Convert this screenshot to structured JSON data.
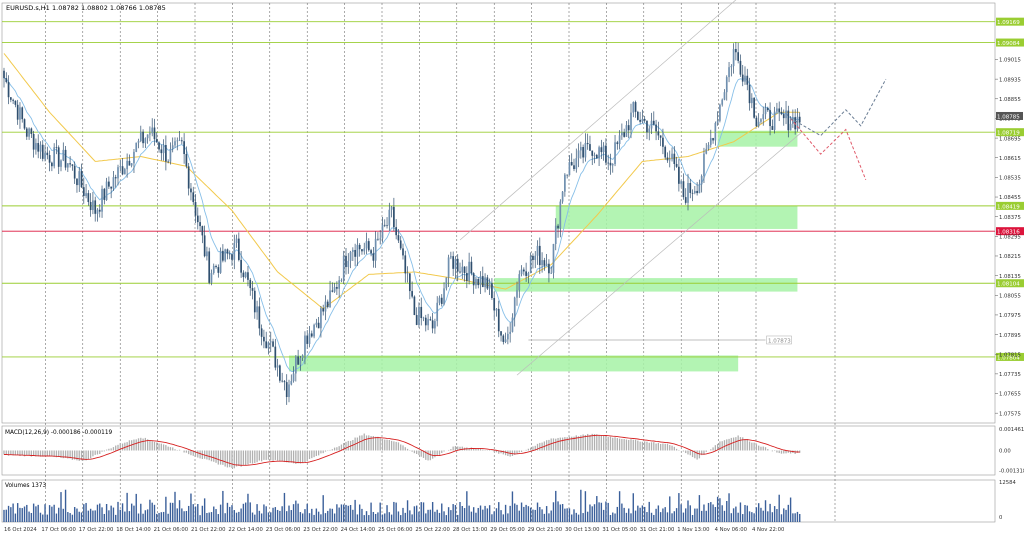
{
  "header": {
    "symbol_label": "EURUSD.s,H1",
    "ohlc": "1.08782 1.08802 1.08766 1.08785"
  },
  "chart_data": {
    "type": "candlestick",
    "symbol": "EURUSD.s",
    "timeframe": "H1",
    "ylim": [
      1.07535,
      1.09245
    ],
    "price_ticks": [
      "1.09015",
      "1.08935",
      "1.08855",
      "1.08775",
      "1.08695",
      "1.08615",
      "1.08535",
      "1.08455",
      "1.08375",
      "1.08295",
      "1.08215",
      "1.08135",
      "1.08055",
      "1.07975",
      "1.07895",
      "1.07815",
      "1.07735",
      "1.07655",
      "1.07575"
    ],
    "x_labels": [
      "16 Oct 2024",
      "17 Oct 06:00",
      "17 Oct 22:00",
      "18 Oct 14:00",
      "21 Oct 06:00",
      "21 Oct 22:00",
      "22 Oct 14:00",
      "23 Oct 06:00",
      "23 Oct 22:00",
      "24 Oct 14:00",
      "25 Oct 06:00",
      "25 Oct 22:00",
      "28 Oct 13:00",
      "29 Oct 05:00",
      "29 Oct 21:00",
      "30 Oct 13:00",
      "31 Oct 05:00",
      "31 Oct 21:00",
      "1 Nov 13:00",
      "4 Nov 06:00",
      "4 Nov 22:00"
    ],
    "levels": [
      {
        "label": "1.09169",
        "price": 1.09169,
        "color": "#9acd32"
      },
      {
        "label": "1.09084",
        "price": 1.09084,
        "color": "#9acd32"
      },
      {
        "label": "1.08719",
        "price": 1.08719,
        "color": "#9acd32"
      },
      {
        "label": "1.08419",
        "price": 1.08419,
        "color": "#9acd32"
      },
      {
        "label": "1.08316",
        "price": 1.08316,
        "color": "#dc143c"
      },
      {
        "label": "1.08104",
        "price": 1.08104,
        "color": "#9acd32"
      },
      {
        "label": "1.07804",
        "price": 1.07804,
        "color": "#9acd32"
      }
    ],
    "current_price": {
      "label": "1.08785",
      "price": 1.08785
    },
    "annotation": {
      "label": "1.07873",
      "price": 1.07873
    },
    "zones": [
      {
        "from": 1.0866,
        "to": 1.08725,
        "start_bar": 313,
        "end_bar": 348
      },
      {
        "from": 1.08325,
        "to": 1.0842,
        "start_bar": 242,
        "end_bar": 348
      },
      {
        "from": 1.0807,
        "to": 1.08125,
        "start_bar": 215,
        "end_bar": 348
      },
      {
        "from": 1.07745,
        "to": 1.0781,
        "start_bar": 125,
        "end_bar": 322
      }
    ],
    "anchors": [
      [
        0,
        1.0894
      ],
      [
        10,
        1.0872
      ],
      [
        18,
        1.0863
      ],
      [
        28,
        1.086
      ],
      [
        40,
        1.084
      ],
      [
        46,
        1.085
      ],
      [
        58,
        1.0866
      ],
      [
        64,
        1.0872
      ],
      [
        72,
        1.0862
      ],
      [
        78,
        1.0866
      ],
      [
        90,
        1.0815
      ],
      [
        102,
        1.0825
      ],
      [
        112,
        1.0795
      ],
      [
        124,
        1.0768
      ],
      [
        132,
        1.0788
      ],
      [
        144,
        1.0805
      ],
      [
        152,
        1.0826
      ],
      [
        162,
        1.0823
      ],
      [
        170,
        1.0838
      ],
      [
        180,
        1.0798
      ],
      [
        188,
        1.0792
      ],
      [
        196,
        1.082
      ],
      [
        204,
        1.0815
      ],
      [
        212,
        1.081
      ],
      [
        220,
        1.0784
      ],
      [
        226,
        1.0815
      ],
      [
        234,
        1.0822
      ],
      [
        240,
        1.0818
      ],
      [
        246,
        1.0856
      ],
      [
        258,
        1.0866
      ],
      [
        266,
        1.086
      ],
      [
        276,
        1.088
      ],
      [
        286,
        1.0872
      ],
      [
        292,
        1.0862
      ],
      [
        298,
        1.0846
      ],
      [
        305,
        1.0852
      ],
      [
        312,
        1.0876
      ],
      [
        320,
        1.0905
      ],
      [
        325,
        1.0895
      ],
      [
        330,
        1.0878
      ],
      [
        340,
        1.0877
      ]
    ],
    "ma_slow_anchors": [
      [
        0,
        1.0904
      ],
      [
        20,
        1.088
      ],
      [
        40,
        1.086
      ],
      [
        60,
        1.0862
      ],
      [
        80,
        1.0858
      ],
      [
        100,
        1.084
      ],
      [
        120,
        1.0815
      ],
      [
        140,
        1.08
      ],
      [
        160,
        1.0814
      ],
      [
        180,
        1.0815
      ],
      [
        200,
        1.0812
      ],
      [
        220,
        1.0808
      ],
      [
        240,
        1.0818
      ],
      [
        260,
        1.0838
      ],
      [
        280,
        1.086
      ],
      [
        300,
        1.0862
      ],
      [
        320,
        1.0868
      ],
      [
        340,
        1.088
      ]
    ],
    "forecast_gray": [
      [
        1.08775,
        0
      ],
      [
        1.08705,
        6
      ],
      [
        1.0881,
        11
      ],
      [
        1.08745,
        14
      ],
      [
        1.08935,
        19
      ]
    ],
    "forecast_red": [
      [
        1.08775,
        0
      ],
      [
        1.0863,
        6
      ],
      [
        1.0873,
        11
      ],
      [
        1.08525,
        15
      ]
    ],
    "macd": {
      "label": "MACD(12,26,9) -0.000186 -0.000119",
      "ticks": [
        "0.001461",
        "0.00",
        "-0.001318"
      ],
      "ylim": [
        -0.00165,
        0.00165
      ],
      "anchors": [
        [
          0,
          -0.0003
        ],
        [
          20,
          -0.0004
        ],
        [
          35,
          -0.0007
        ],
        [
          50,
          0.0004
        ],
        [
          60,
          0.0009
        ],
        [
          72,
          0.0003
        ],
        [
          86,
          -0.0005
        ],
        [
          100,
          -0.0012
        ],
        [
          115,
          -0.0006
        ],
        [
          130,
          -0.0009
        ],
        [
          145,
          0.0002
        ],
        [
          158,
          0.0011
        ],
        [
          172,
          0.0006
        ],
        [
          186,
          -0.0007
        ],
        [
          198,
          0.0003
        ],
        [
          210,
          0.0001
        ],
        [
          222,
          -0.0004
        ],
        [
          240,
          0.0008
        ],
        [
          258,
          0.0011
        ],
        [
          276,
          0.0007
        ],
        [
          292,
          0.0004
        ],
        [
          304,
          -0.0006
        ],
        [
          314,
          0.0006
        ],
        [
          322,
          0.001
        ],
        [
          332,
          0.0003
        ],
        [
          340,
          -0.0002
        ]
      ]
    },
    "volumes": {
      "label": "Volumes 1373",
      "ticks": [
        "12584",
        "0"
      ],
      "max": 12584
    }
  }
}
